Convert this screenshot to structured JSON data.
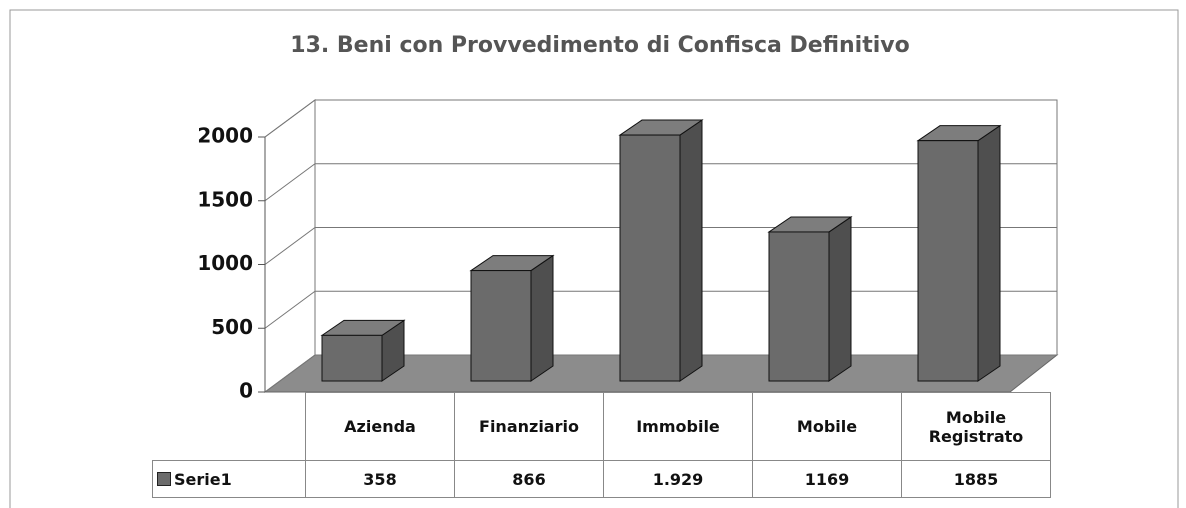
{
  "chart_data": {
    "type": "bar3d",
    "title": "13. Beni con Provvedimento di Confisca Definitivo",
    "categories": [
      "Azienda",
      "Finanziario",
      "Immobile",
      "Mobile",
      "Mobile Registrato"
    ],
    "series": [
      {
        "name": "Serie1",
        "color": "#6b6b6b",
        "values": [
          358,
          866,
          1929,
          1169,
          1885
        ],
        "value_labels": [
          "358",
          "866",
          "1.929",
          "1169",
          "1885"
        ]
      }
    ],
    "ylim": [
      0,
      2000
    ],
    "yticks": [
      0,
      500,
      1000,
      1500,
      2000
    ],
    "grid": true
  }
}
